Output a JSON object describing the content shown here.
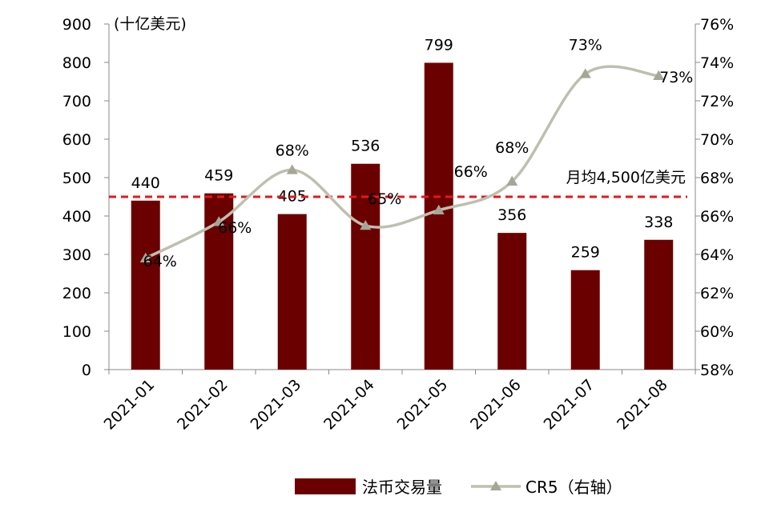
{
  "chart_data": {
    "type": "bar",
    "categories": [
      "2021-01",
      "2021-02",
      "2021-03",
      "2021-04",
      "2021-05",
      "2021-06",
      "2021-07",
      "2021-08"
    ],
    "series": [
      {
        "name": "法币交易量",
        "type": "bar",
        "axis": "left",
        "color": "#6B0000",
        "values": [
          440,
          459,
          405,
          536,
          799,
          356,
          259,
          338
        ],
        "labels": [
          "440",
          "459",
          "405",
          "536",
          "799",
          "356",
          "259",
          "338"
        ]
      },
      {
        "name": "CR5（右轴）",
        "type": "line",
        "axis": "right",
        "color": "#BFBFB0",
        "marker": "triangle",
        "smooth": true,
        "values": [
          0.638,
          0.657,
          0.684,
          0.655,
          0.663,
          0.678,
          0.734,
          0.733
        ],
        "labels": [
          "64%",
          "66%",
          "68%",
          "65%",
          "66%",
          "68%",
          "73%",
          "73%"
        ]
      }
    ],
    "y_left": {
      "unit_label": "(十亿美元)",
      "range": [
        0,
        900
      ],
      "ticks": [
        "0",
        "100",
        "200",
        "300",
        "400",
        "500",
        "600",
        "700",
        "800",
        "900"
      ]
    },
    "y_right": {
      "range": [
        0.58,
        0.76
      ],
      "ticks": [
        "58%",
        "60%",
        "62%",
        "64%",
        "66%",
        "68%",
        "70%",
        "72%",
        "74%",
        "76%"
      ]
    },
    "reference_line": {
      "value": 450,
      "axis": "left",
      "label": "月均4,500亿美元",
      "color": "#E8161B",
      "style": "dashed"
    },
    "grid": false,
    "legend": {
      "position": "bottom"
    }
  }
}
